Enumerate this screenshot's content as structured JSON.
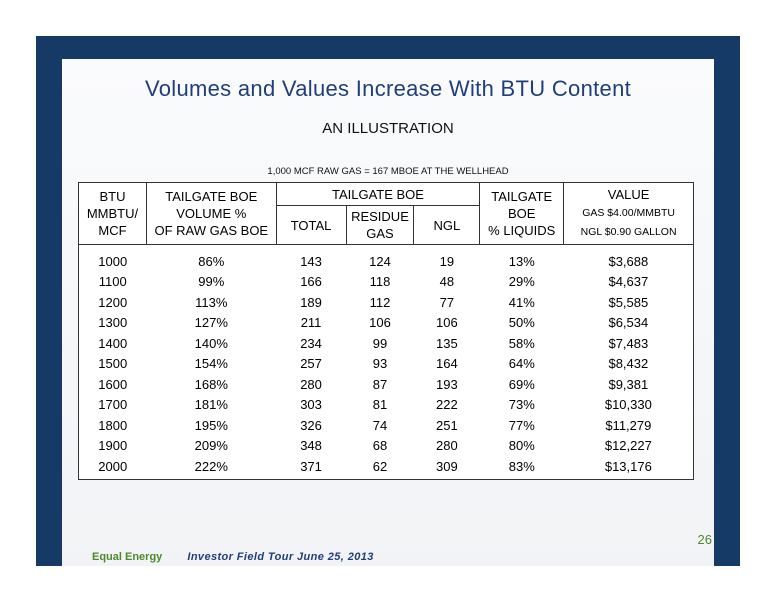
{
  "title": "Volumes and Values Increase With BTU Content",
  "subtitle": "AN ILLUSTRATION",
  "note": "1,000 MCF RAW GAS = 167 MBOE AT THE WELLHEAD",
  "header": {
    "btu": [
      "BTU",
      "MMBTU/",
      "MCF"
    ],
    "volume": [
      "TAILGATE BOE",
      "VOLUME %",
      "OF RAW GAS BOE"
    ],
    "tailgate_boe": "TAILGATE BOE",
    "total": "TOTAL",
    "residue": [
      "RESIDUE",
      "GAS"
    ],
    "ngl": "NGL",
    "liquids": [
      "TAILGATE",
      "BOE",
      "% LIQUIDS"
    ],
    "value": "VALUE",
    "value_gas": "GAS $4.00/MMBTU",
    "value_ngl": "NGL $0.90 GALLON"
  },
  "rows": [
    {
      "btu": "1000",
      "vol": "86%",
      "total": "143",
      "residue": "124",
      "ngl": "19",
      "liquids": "13%",
      "value": "$3,688"
    },
    {
      "btu": "1100",
      "vol": "99%",
      "total": "166",
      "residue": "118",
      "ngl": "48",
      "liquids": "29%",
      "value": "$4,637"
    },
    {
      "btu": "1200",
      "vol": "113%",
      "total": "189",
      "residue": "112",
      "ngl": "77",
      "liquids": "41%",
      "value": "$5,585"
    },
    {
      "btu": "1300",
      "vol": "127%",
      "total": "211",
      "residue": "106",
      "ngl": "106",
      "liquids": "50%",
      "value": "$6,534"
    },
    {
      "btu": "1400",
      "vol": "140%",
      "total": "234",
      "residue": "99",
      "ngl": "135",
      "liquids": "58%",
      "value": "$7,483"
    },
    {
      "btu": "1500",
      "vol": "154%",
      "total": "257",
      "residue": "93",
      "ngl": "164",
      "liquids": "64%",
      "value": "$8,432"
    },
    {
      "btu": "1600",
      "vol": "168%",
      "total": "280",
      "residue": "87",
      "ngl": "193",
      "liquids": "69%",
      "value": "$9,381"
    },
    {
      "btu": "1700",
      "vol": "181%",
      "total": "303",
      "residue": "81",
      "ngl": "222",
      "liquids": "73%",
      "value": "$10,330"
    },
    {
      "btu": "1800",
      "vol": "195%",
      "total": "326",
      "residue": "74",
      "ngl": "251",
      "liquids": "77%",
      "value": "$11,279"
    },
    {
      "btu": "1900",
      "vol": "209%",
      "total": "348",
      "residue": "68",
      "ngl": "280",
      "liquids": "80%",
      "value": "$12,227"
    },
    {
      "btu": "2000",
      "vol": "222%",
      "total": "371",
      "residue": "62",
      "ngl": "309",
      "liquids": "83%",
      "value": "$13,176"
    }
  ],
  "page_number": "26",
  "footer": {
    "company": "Equal Energy",
    "event": "Investor Field Tour June 25, 2013"
  },
  "colors": {
    "frame": "#163a66",
    "title": "#1f3f7a",
    "accent_green": "#4d8a2a"
  }
}
